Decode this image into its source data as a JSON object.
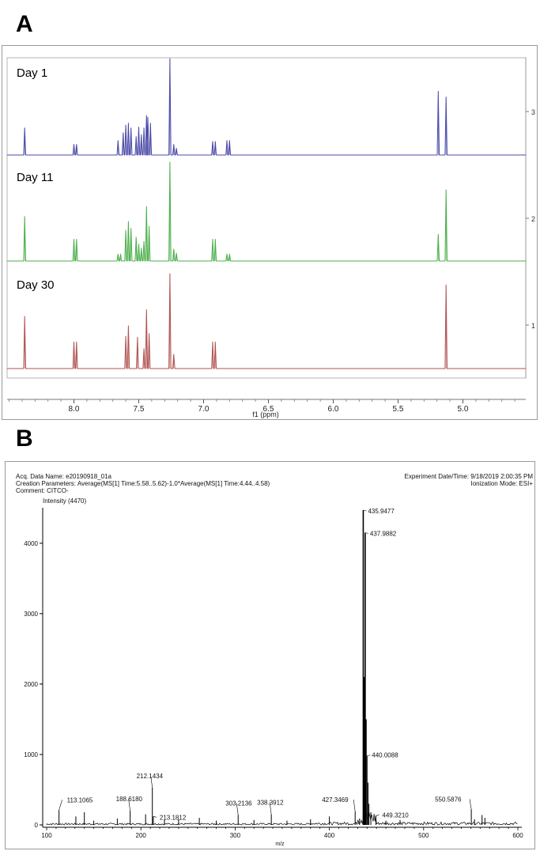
{
  "panels": {
    "a_label": "A",
    "b_label": "B"
  },
  "chart_data": [
    {
      "type": "line",
      "panel": "A",
      "xlabel": "f1 (ppm)",
      "x_reversed": true,
      "xlim": [
        8.5,
        4.5
      ],
      "x_ticks": [
        "8.0",
        "7.5",
        "7.0",
        "6.5",
        "6.0",
        "5.5",
        "5.0"
      ],
      "x_tick_values": [
        8.0,
        7.5,
        7.0,
        6.5,
        6.0,
        5.5,
        5.0
      ],
      "right_axis_ticks": [
        "3",
        "2",
        "1"
      ],
      "series": [
        {
          "name": "Day 1",
          "color": "#4a4aa8",
          "peaks": [
            [
              8.38,
              0.28
            ],
            [
              8.0,
              0.11
            ],
            [
              7.98,
              0.11
            ],
            [
              7.66,
              0.15
            ],
            [
              7.62,
              0.23
            ],
            [
              7.6,
              0.31
            ],
            [
              7.58,
              0.33
            ],
            [
              7.56,
              0.28
            ],
            [
              7.52,
              0.19
            ],
            [
              7.5,
              0.29
            ],
            [
              7.48,
              0.21
            ],
            [
              7.46,
              0.28
            ],
            [
              7.44,
              0.41
            ],
            [
              7.43,
              0.39
            ],
            [
              7.41,
              0.33
            ],
            [
              7.26,
              1.0
            ],
            [
              7.23,
              0.11
            ],
            [
              7.21,
              0.07
            ],
            [
              6.93,
              0.14
            ],
            [
              6.91,
              0.14
            ],
            [
              6.82,
              0.15
            ],
            [
              6.8,
              0.15
            ],
            [
              5.19,
              0.66
            ],
            [
              5.13,
              0.6
            ]
          ]
        },
        {
          "name": "Day 11",
          "color": "#4caf4c",
          "peaks": [
            [
              8.38,
              0.45
            ],
            [
              8.0,
              0.22
            ],
            [
              7.98,
              0.22
            ],
            [
              7.66,
              0.07
            ],
            [
              7.64,
              0.07
            ],
            [
              7.6,
              0.31
            ],
            [
              7.58,
              0.4
            ],
            [
              7.56,
              0.33
            ],
            [
              7.52,
              0.24
            ],
            [
              7.5,
              0.17
            ],
            [
              7.48,
              0.13
            ],
            [
              7.46,
              0.2
            ],
            [
              7.44,
              0.55
            ],
            [
              7.42,
              0.35
            ],
            [
              7.26,
              1.0
            ],
            [
              7.23,
              0.12
            ],
            [
              7.21,
              0.08
            ],
            [
              6.93,
              0.22
            ],
            [
              6.91,
              0.22
            ],
            [
              6.82,
              0.07
            ],
            [
              6.8,
              0.07
            ],
            [
              5.19,
              0.27
            ],
            [
              5.13,
              0.72
            ]
          ]
        },
        {
          "name": "Day 30",
          "color": "#b05252",
          "peaks": [
            [
              8.38,
              0.55
            ],
            [
              8.0,
              0.28
            ],
            [
              7.98,
              0.28
            ],
            [
              7.6,
              0.34
            ],
            [
              7.58,
              0.45
            ],
            [
              7.51,
              0.33
            ],
            [
              7.46,
              0.21
            ],
            [
              7.44,
              0.62
            ],
            [
              7.42,
              0.37
            ],
            [
              7.26,
              1.0
            ],
            [
              7.23,
              0.15
            ],
            [
              6.93,
              0.28
            ],
            [
              6.91,
              0.28
            ],
            [
              5.13,
              0.88
            ]
          ]
        }
      ]
    },
    {
      "type": "line",
      "panel": "B",
      "header": {
        "acq_name": "Acq. Data Name: e20190918_01a",
        "creation": "Creation Parameters: Average(MS[1] Time:5.58..5.62)-1.0*Average(MS[1] Time:4.44..4.58)",
        "comment": "Comment: CITCO-",
        "experiment_date": "Experiment Date/Time: 9/18/2019 2:00:35 PM",
        "ionization": "Ionization Mode: ESI+"
      },
      "ylabel": "Intensity (4470)",
      "xlabel": "m/z",
      "xlim": [
        100,
        600
      ],
      "ylim": [
        0,
        4470
      ],
      "x_ticks": [
        "100",
        "200",
        "300",
        "400",
        "500",
        "600"
      ],
      "x_tick_values": [
        100,
        200,
        300,
        400,
        500,
        600
      ],
      "y_ticks": [
        "0",
        "1000",
        "2000",
        "3000",
        "4000"
      ],
      "y_tick_values": [
        0,
        1000,
        2000,
        3000,
        4000
      ],
      "peaks": [
        [
          113.1065,
          210
        ],
        [
          131.0,
          120
        ],
        [
          140.0,
          180
        ],
        [
          150.0,
          60
        ],
        [
          175.0,
          90
        ],
        [
          188.618,
          200
        ],
        [
          205.0,
          150
        ],
        [
          212.1434,
          530
        ],
        [
          213.1812,
          120
        ],
        [
          225.0,
          70
        ],
        [
          240.0,
          80
        ],
        [
          262.0,
          100
        ],
        [
          280.0,
          60
        ],
        [
          303.2136,
          140
        ],
        [
          320.0,
          70
        ],
        [
          338.3912,
          150
        ],
        [
          355.0,
          60
        ],
        [
          380.0,
          80
        ],
        [
          400.0,
          120
        ],
        [
          427.3469,
          190
        ],
        [
          432.0,
          90
        ],
        [
          435.9477,
          4470
        ],
        [
          436.9,
          2100
        ],
        [
          437.9882,
          4150
        ],
        [
          438.9,
          1500
        ],
        [
          440.0088,
          980
        ],
        [
          441.0,
          600
        ],
        [
          442.0,
          300
        ],
        [
          444.0,
          180
        ],
        [
          449.321,
          130
        ],
        [
          460.0,
          60
        ],
        [
          475.0,
          70
        ],
        [
          550.5876,
          220
        ],
        [
          554.0,
          80
        ],
        [
          562.0,
          140
        ],
        [
          565.0,
          100
        ]
      ],
      "peak_labels": [
        {
          "x": 435.9477,
          "y": 4470,
          "text": "435.9477"
        },
        {
          "x": 437.9882,
          "y": 4150,
          "text": "437.9882"
        },
        {
          "x": 440.0088,
          "y": 980,
          "text": "440.0088"
        },
        {
          "x": 427.3469,
          "y": 190,
          "text": "427.3469"
        },
        {
          "x": 449.321,
          "y": 130,
          "text": "449.3210"
        },
        {
          "x": 550.5876,
          "y": 220,
          "text": "550.5876"
        },
        {
          "x": 212.1434,
          "y": 530,
          "text": "212.1434"
        },
        {
          "x": 213.1812,
          "y": 120,
          "text": "213.1812"
        },
        {
          "x": 188.618,
          "y": 200,
          "text": "188.6180"
        },
        {
          "x": 113.1065,
          "y": 210,
          "text": "113.1065"
        },
        {
          "x": 303.2136,
          "y": 140,
          "text": "303.2136"
        },
        {
          "x": 338.3912,
          "y": 150,
          "text": "338.3912"
        }
      ]
    }
  ]
}
